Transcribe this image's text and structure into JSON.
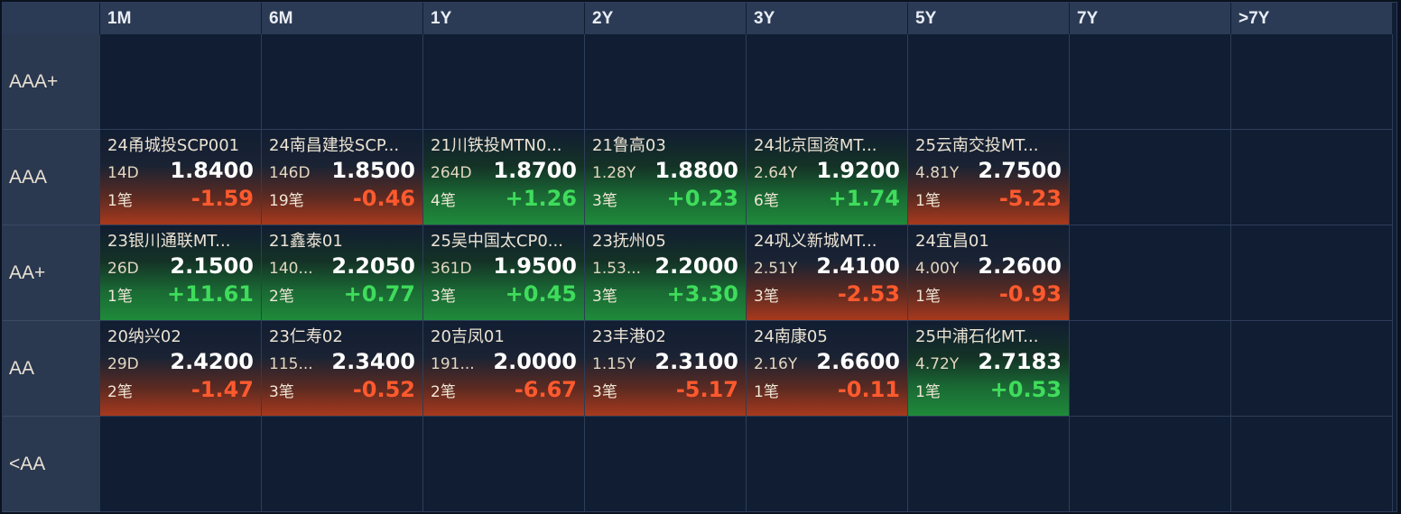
{
  "columns": [
    "1M",
    "6M",
    "1Y",
    "2Y",
    "3Y",
    "5Y",
    "7Y",
    ">7Y"
  ],
  "rows": [
    "AAA+",
    "AAA",
    "AA+",
    "AA",
    "<AA"
  ],
  "colors": {
    "up": "#3fdc5c",
    "down": "#ff5a2e",
    "background": "#101d33",
    "header": "#2c3b55"
  },
  "cards": {
    "AAA": [
      {
        "name": "24甬城投SCP001",
        "term": "14D",
        "yield": "1.8400",
        "count": "1笔",
        "change": "-1.59",
        "dir": "down"
      },
      {
        "name": "24南昌建投SCP...",
        "term": "146D",
        "yield": "1.8500",
        "count": "19笔",
        "change": "-0.46",
        "dir": "down"
      },
      {
        "name": "21川铁投MTN0...",
        "term": "264D",
        "yield": "1.8700",
        "count": "4笔",
        "change": "+1.26",
        "dir": "up"
      },
      {
        "name": "21鲁高03",
        "term": "1.28Y",
        "yield": "1.8800",
        "count": "3笔",
        "change": "+0.23",
        "dir": "up"
      },
      {
        "name": "24北京国资MT...",
        "term": "2.64Y",
        "yield": "1.9200",
        "count": "6笔",
        "change": "+1.74",
        "dir": "up"
      },
      {
        "name": "25云南交投MT...",
        "term": "4.81Y",
        "yield": "2.7500",
        "count": "1笔",
        "change": "-5.23",
        "dir": "down"
      },
      null,
      null
    ],
    "AA+": [
      {
        "name": "23银川通联MT...",
        "term": "26D",
        "yield": "2.1500",
        "count": "1笔",
        "change": "+11.61",
        "dir": "up"
      },
      {
        "name": "21鑫泰01",
        "term": "140...",
        "yield": "2.2050",
        "count": "2笔",
        "change": "+0.77",
        "dir": "up"
      },
      {
        "name": "25吴中国太CP0...",
        "term": "361D",
        "yield": "1.9500",
        "count": "3笔",
        "change": "+0.45",
        "dir": "up"
      },
      {
        "name": "23抚州05",
        "term": "1.53...",
        "yield": "2.2000",
        "count": "3笔",
        "change": "+3.30",
        "dir": "up"
      },
      {
        "name": "24巩义新城MT...",
        "term": "2.51Y",
        "yield": "2.4100",
        "count": "3笔",
        "change": "-2.53",
        "dir": "down"
      },
      {
        "name": "24宜昌01",
        "term": "4.00Y",
        "yield": "2.2600",
        "count": "1笔",
        "change": "-0.93",
        "dir": "down"
      },
      null,
      null
    ],
    "AA": [
      {
        "name": "20纳兴02",
        "term": "29D",
        "yield": "2.4200",
        "count": "2笔",
        "change": "-1.47",
        "dir": "down"
      },
      {
        "name": "23仁寿02",
        "term": "115...",
        "yield": "2.3400",
        "count": "3笔",
        "change": "-0.52",
        "dir": "down"
      },
      {
        "name": "20吉凤01",
        "term": "191...",
        "yield": "2.0000",
        "count": "2笔",
        "change": "-6.67",
        "dir": "down"
      },
      {
        "name": "23丰港02",
        "term": "1.15Y",
        "yield": "2.3100",
        "count": "3笔",
        "change": "-5.17",
        "dir": "down"
      },
      {
        "name": "24南康05",
        "term": "2.16Y",
        "yield": "2.6600",
        "count": "1笔",
        "change": "-0.11",
        "dir": "down"
      },
      {
        "name": "25中浦石化MT...",
        "term": "4.72Y",
        "yield": "2.7183",
        "count": "1笔",
        "change": "+0.53",
        "dir": "up"
      },
      null,
      null
    ]
  }
}
